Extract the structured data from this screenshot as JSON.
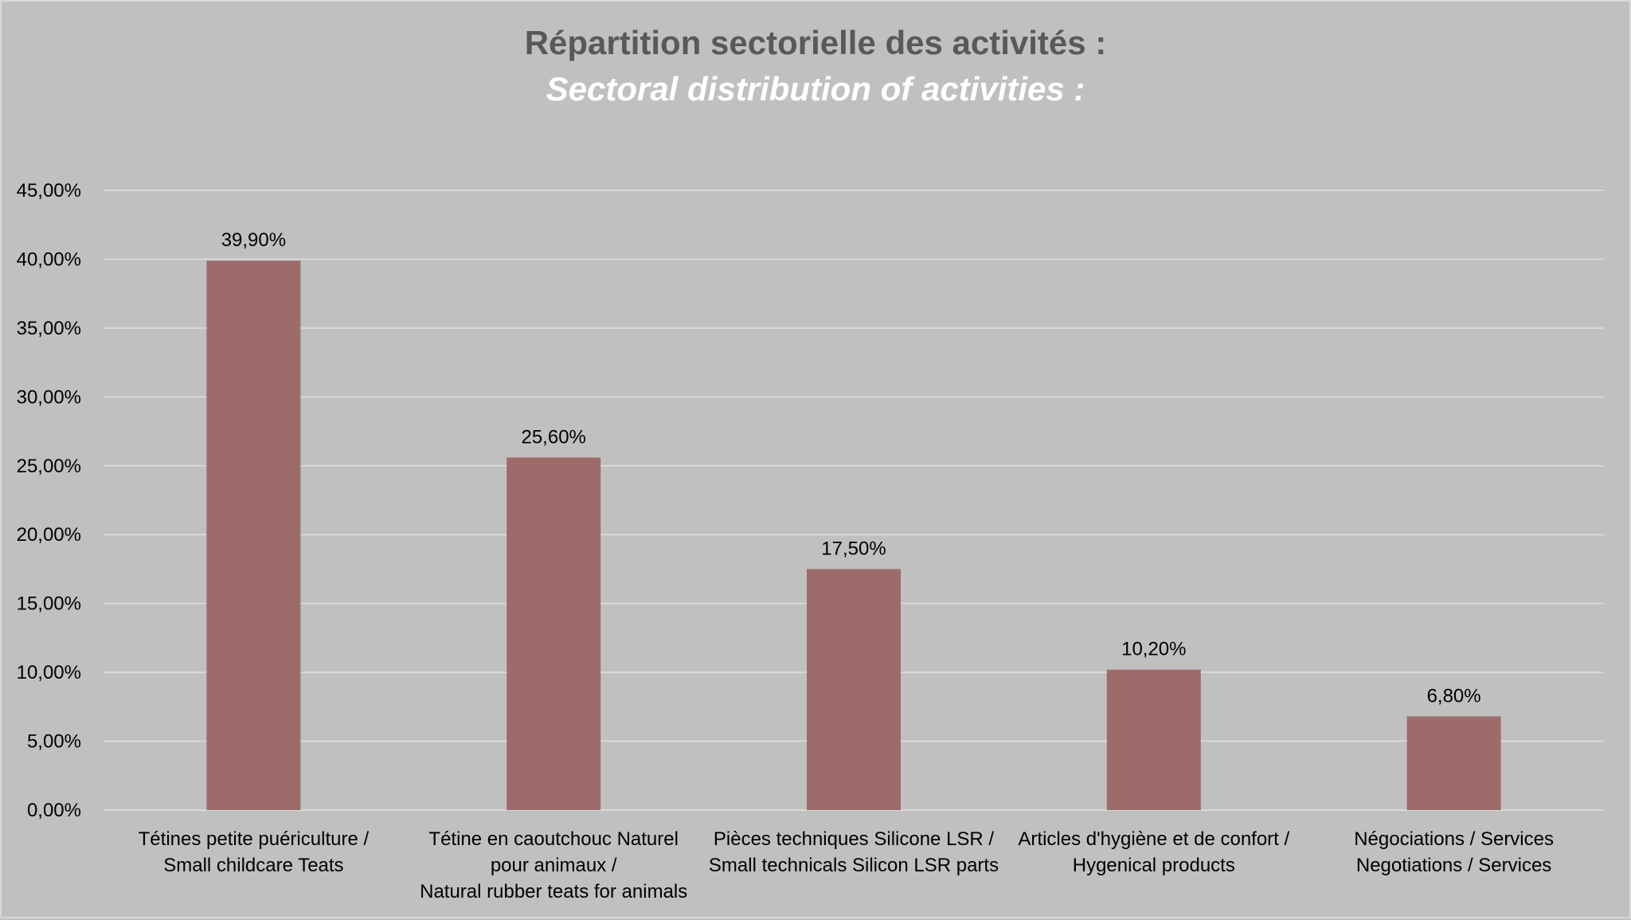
{
  "title": "Répartition sectorielle des activités :",
  "subtitle": "Sectoral distribution of activities :",
  "chart_data": {
    "type": "bar",
    "title": "Répartition sectorielle des activités :",
    "subtitle": "Sectoral distribution of activities :",
    "xlabel": "",
    "ylabel": "",
    "ylim": [
      0,
      45
    ],
    "ytick_values": [
      0,
      5,
      10,
      15,
      20,
      25,
      30,
      35,
      40,
      45
    ],
    "ytick_labels": [
      "0,00%",
      "5,00%",
      "10,00%",
      "15,00%",
      "20,00%",
      "25,00%",
      "30,00%",
      "35,00%",
      "40,00%",
      "45,00%"
    ],
    "grid": true,
    "legend": "none",
    "bar_color": "#9e6b6b",
    "categories": [
      [
        "Tétines petite puériculture /",
        "Small childcare Teats"
      ],
      [
        "Tétine en caoutchouc Naturel",
        "pour animaux /",
        "Natural rubber teats for animals"
      ],
      [
        "Pièces techniques Silicone LSR /",
        "Small technicals Silicon LSR parts"
      ],
      [
        "Articles d'hygiène et de confort /",
        "Hygenical products"
      ],
      [
        "Négociations / Services",
        "Negotiations / Services"
      ]
    ],
    "values": [
      39.9,
      25.6,
      17.5,
      10.2,
      6.8
    ],
    "data_labels": [
      "39,90%",
      "25,60%",
      "17,50%",
      "10,20%",
      "6,80%"
    ]
  }
}
